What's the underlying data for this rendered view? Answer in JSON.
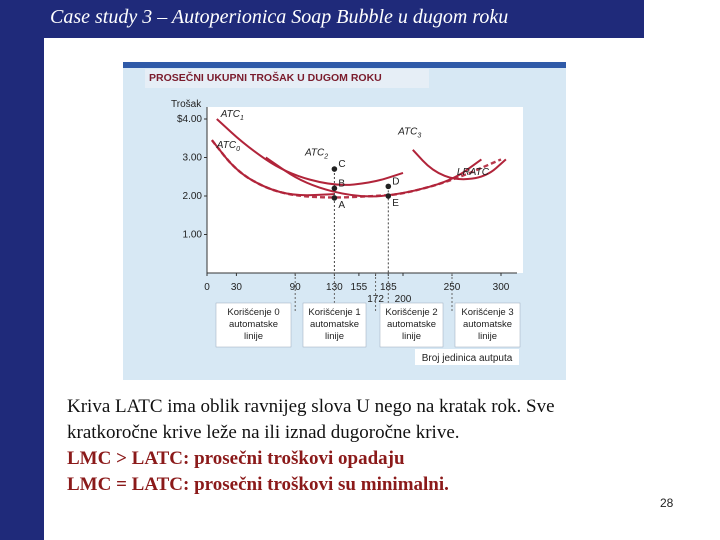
{
  "slide": {
    "title": "Case study 3 – Autoperionica Soap Bubble u dugom roku",
    "page_number": "28",
    "colors": {
      "bar": "#1f2a7a",
      "figure_bg": "#d7e8f4",
      "curve": "#b1243a",
      "accent_text": "#8b1a1a"
    }
  },
  "figure": {
    "title": "PROSEČNI UKUPNI TROŠAK U DUGOM ROKU"
  },
  "chart_data": {
    "type": "line",
    "ylabel": "Trošak",
    "xlabel": "Broj jedinica autputa",
    "y_ticks": [
      "$4.00",
      "3.00",
      "2.00",
      "1.00"
    ],
    "y_tick_values": [
      4,
      3,
      2,
      1
    ],
    "x_ticks": [
      "0",
      "30",
      "90",
      "130",
      "155",
      "185",
      "250",
      "300"
    ],
    "x_ticks_lower": [
      "172",
      "200"
    ],
    "xlim": [
      0,
      300
    ],
    "ylim": [
      0,
      4
    ],
    "series": [
      {
        "name": "ATC0",
        "x": [
          5,
          30,
          60,
          90,
          130
        ],
        "y": [
          3.45,
          2.65,
          2.2,
          2.0,
          2.05
        ]
      },
      {
        "name": "ATC1",
        "x": [
          10,
          40,
          80,
          130,
          170,
          200
        ],
        "y": [
          4.0,
          3.3,
          2.6,
          2.25,
          2.35,
          2.6
        ]
      },
      {
        "name": "ATC2",
        "x": [
          60,
          100,
          155,
          200,
          250,
          280
        ],
        "y": [
          3.0,
          2.3,
          1.95,
          2.05,
          2.4,
          2.95
        ]
      },
      {
        "name": "ATC3",
        "x": [
          210,
          230,
          255,
          285,
          305
        ],
        "y": [
          3.2,
          2.65,
          2.4,
          2.5,
          2.95
        ]
      },
      {
        "name": "LRATC",
        "x": [
          5,
          30,
          60,
          90,
          130,
          172,
          200,
          250,
          300
        ],
        "y": [
          3.45,
          2.65,
          2.2,
          2.0,
          1.95,
          2.0,
          2.05,
          2.4,
          2.95
        ]
      }
    ],
    "points": [
      {
        "label": "A",
        "x": 130,
        "y": 1.95
      },
      {
        "label": "B",
        "x": 130,
        "y": 2.2
      },
      {
        "label": "C",
        "x": 130,
        "y": 2.7
      },
      {
        "label": "D",
        "x": 185,
        "y": 2.25
      },
      {
        "label": "E",
        "x": 185,
        "y": 2.0
      }
    ],
    "series_labels": [
      "ATC1",
      "ATC0",
      "ATC2",
      "ATC3",
      "LRATC"
    ],
    "regions": [
      [
        "Korišćenje 0",
        "automatske",
        "linije"
      ],
      [
        "Korišćenje 1",
        "automatske",
        "linije"
      ],
      [
        "Korišćenje 2",
        "automatske",
        "linije"
      ],
      [
        "Korišćenje 3",
        "automatske",
        "linije"
      ]
    ]
  },
  "text": {
    "line1": "Kriva LATC ima oblik ravnijeg slova U nego na kratak rok. Sve",
    "line2": "kratkoročne krive leže na ili iznad dugoročne krive.",
    "line3": "LMC > LATC: prosečni troškovi opadaju",
    "line4": "LMC = LATC: prosečni troškovi su minimalni."
  }
}
